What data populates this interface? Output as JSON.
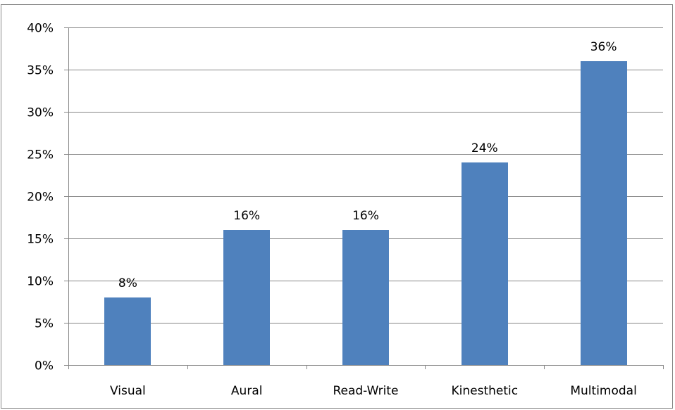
{
  "chart_data": {
    "type": "bar",
    "categories": [
      "Visual",
      "Aural",
      "Read-Write",
      "Kinesthetic",
      "Multimodal"
    ],
    "values": [
      8,
      16,
      16,
      24,
      36
    ],
    "data_labels": [
      "8%",
      "16%",
      "16%",
      "24%",
      "36%"
    ],
    "y_tick_values": [
      0,
      5,
      10,
      15,
      20,
      25,
      30,
      35,
      40
    ],
    "y_tick_labels": [
      "0%",
      "5%",
      "10%",
      "15%",
      "20%",
      "25%",
      "30%",
      "35%",
      "40%"
    ],
    "ylim": [
      0,
      40
    ],
    "grid": true,
    "legend": "none",
    "title": "",
    "xlabel": "",
    "ylabel": "",
    "colors": {
      "bar": "#4f81bd",
      "grid": "#868686",
      "axis": "#868686"
    }
  }
}
